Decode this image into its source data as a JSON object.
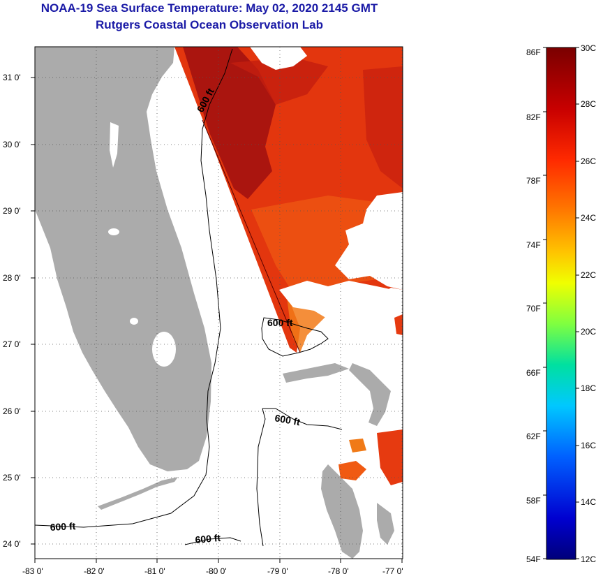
{
  "title": {
    "line1": "NOAA-19 Sea Surface Temperature:  May 02, 2020 2145 GMT",
    "line2": "Rutgers Coastal Ocean Observation Lab"
  },
  "map": {
    "lat_labels": [
      "31 0'",
      "30 0'",
      "29 0'",
      "28 0'",
      "27 0'",
      "26 0'",
      "25 0'",
      "24 0'"
    ],
    "lon_labels": [
      "-83 0'",
      "-82 0'",
      "-81 0'",
      "-80 0'",
      "-79 0'",
      "-78 0'",
      "-77 0'"
    ],
    "contour_labels": [
      "600 ft",
      "600 ft",
      "600 ft",
      "600 ft",
      "600 ft"
    ],
    "colors": {
      "land": "#ababab",
      "sst_warm": "#e0300d",
      "sst_hot": "#9e0f0f",
      "sst_orange": "#f06a12"
    }
  },
  "colorbar": {
    "fahrenheit": [
      "86F",
      "82F",
      "78F",
      "74F",
      "70F",
      "66F",
      "62F",
      "58F",
      "54F"
    ],
    "celsius": [
      "30C",
      "28C",
      "26C",
      "24C",
      "22C",
      "20C",
      "18C",
      "16C",
      "14C",
      "12C"
    ],
    "gradient": [
      "#7a0000",
      "#c80000",
      "#ff2a00",
      "#ff7a00",
      "#ffc400",
      "#f0ff00",
      "#7fff40",
      "#00e0a0",
      "#00c8ff",
      "#0060ff",
      "#0000d0",
      "#00007a"
    ]
  }
}
